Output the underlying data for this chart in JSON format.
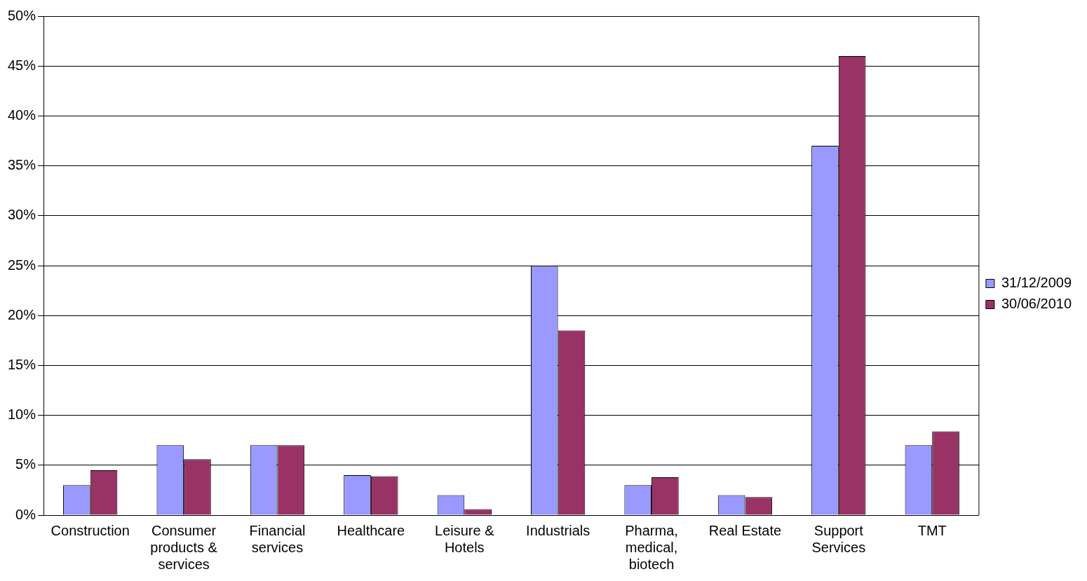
{
  "chart_data": {
    "type": "bar",
    "categories": [
      "Construction",
      "Consumer products & services",
      "Financial services",
      "Healthcare",
      "Leisure & Hotels",
      "Industrials",
      "Pharma, medical, biotech",
      "Real Estate",
      "Support Services",
      "TMT"
    ],
    "series": [
      {
        "name": "31/12/2009",
        "color": "#9999ff",
        "values": [
          3,
          7,
          7,
          4,
          2,
          25,
          3,
          2,
          37,
          7
        ]
      },
      {
        "name": "30/06/2010",
        "color": "#993366",
        "values": [
          4.5,
          5.6,
          7,
          3.9,
          0.6,
          18.5,
          3.8,
          1.8,
          46,
          8.4
        ]
      }
    ],
    "ylim": [
      0,
      50
    ],
    "yticks": [
      {
        "value": 0,
        "label": "0%"
      },
      {
        "value": 5,
        "label": "5%"
      },
      {
        "value": 10,
        "label": "10%"
      },
      {
        "value": 15,
        "label": "15%"
      },
      {
        "value": 20,
        "label": "20%"
      },
      {
        "value": 25,
        "label": "25%"
      },
      {
        "value": 30,
        "label": "30%"
      },
      {
        "value": 35,
        "label": "35%"
      },
      {
        "value": 40,
        "label": "40%"
      },
      {
        "value": 45,
        "label": "45%"
      },
      {
        "value": 50,
        "label": "50%"
      }
    ],
    "grid": "y",
    "legend": "right"
  }
}
